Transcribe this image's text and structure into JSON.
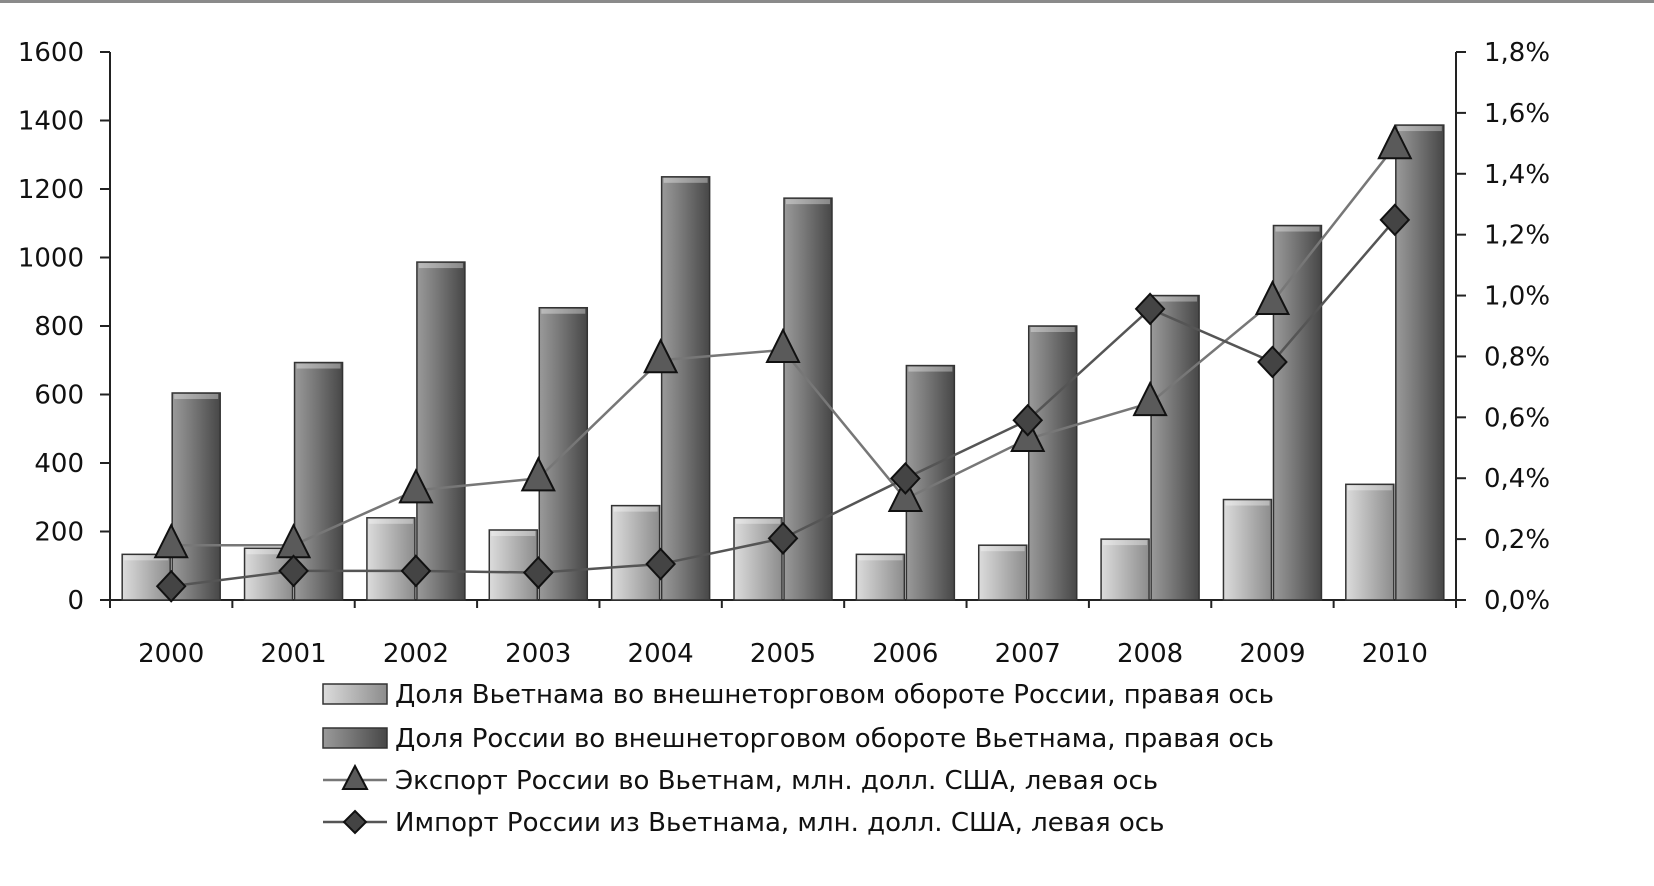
{
  "chart_data": {
    "type": "bar",
    "categories": [
      "2000",
      "2001",
      "2002",
      "2003",
      "2004",
      "2005",
      "2006",
      "2007",
      "2008",
      "2009",
      "2010"
    ],
    "left_axis": {
      "ylim": [
        0,
        1600
      ],
      "ticks": [
        0,
        200,
        400,
        600,
        800,
        1000,
        1200,
        1400,
        1600
      ],
      "tick_labels": [
        "0",
        "200",
        "400",
        "600",
        "800",
        "1000",
        "1200",
        "1400",
        "1600"
      ]
    },
    "right_axis": {
      "ylim": [
        0,
        1.8
      ],
      "ticks": [
        0,
        0.2,
        0.4,
        0.6,
        0.8,
        1.0,
        1.2,
        1.4,
        1.6,
        1.8
      ],
      "tick_labels": [
        "0,0%",
        "0,2%",
        "0,4%",
        "0,6%",
        "0,8%",
        "1,0%",
        "1,2%",
        "1,4%",
        "1,6%",
        "1,8%"
      ]
    },
    "series": [
      {
        "name": "Доля Вьетнама во внешнеторговом обороте России, правая ось",
        "kind": "bar",
        "axis": "right",
        "color": "#b8b8b8",
        "values": [
          0.15,
          0.17,
          0.27,
          0.23,
          0.31,
          0.27,
          0.15,
          0.18,
          0.2,
          0.33,
          0.38
        ]
      },
      {
        "name": "Доля России во внешнеторговом обороте Вьетнама, правая ось",
        "kind": "bar",
        "axis": "right",
        "color": "#7a7a7a",
        "values": [
          0.68,
          0.78,
          1.11,
          0.96,
          1.39,
          1.32,
          0.77,
          0.9,
          1.0,
          1.23,
          1.56
        ]
      },
      {
        "name": "Экспорт России во Вьетнам, млн. долл. США, левая ось",
        "kind": "line",
        "marker": "triangle",
        "axis": "left",
        "color": "#777777",
        "values": [
          160,
          160,
          320,
          355,
          700,
          730,
          295,
          470,
          575,
          870,
          1325
        ]
      },
      {
        "name": "Импорт России из Вьетнама, млн. долл. США, левая ось",
        "kind": "line",
        "marker": "diamond",
        "axis": "left",
        "color": "#555555",
        "values": [
          40,
          85,
          85,
          80,
          105,
          180,
          355,
          525,
          850,
          695,
          1110
        ]
      }
    ]
  }
}
